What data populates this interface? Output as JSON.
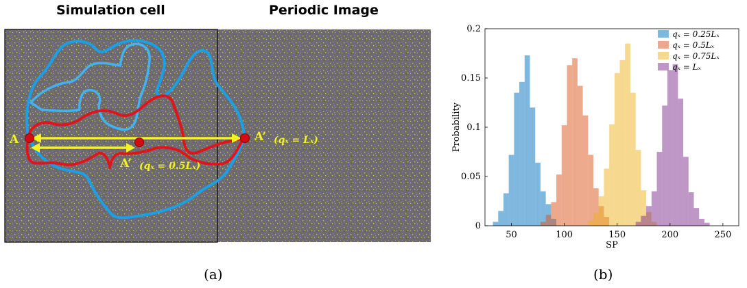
{
  "panel_a": {
    "title_left": "Simulation cell",
    "title_right": "Periodic Image",
    "point_a_label": "A",
    "point_a_prime_far_label": "A’",
    "point_a_prime_far_eq": "(qₓ = Lₓ)",
    "point_a_prime_near_label": "A’",
    "point_a_prime_near_eq": "(qₓ = 0.5Lₓ)",
    "sub_label": "(a)",
    "colors": {
      "background": "#6e6a72",
      "speckle": "#d2cf3a",
      "path_blue": "#1ba0e6",
      "path_light_blue": "#3fb4f0",
      "path_red": "#e0141c",
      "arrow": "#f3f224",
      "point": "#d40d12"
    }
  },
  "panel_b": {
    "sub_label": "(b)"
  },
  "chart_data": {
    "type": "bar",
    "subtype": "histogram",
    "xlabel": "SP",
    "ylabel": "Probability",
    "xlim": [
      25,
      265
    ],
    "ylim": [
      0,
      0.2
    ],
    "xticks": [
      50,
      100,
      150,
      200,
      250
    ],
    "yticks": [
      0,
      0.05,
      0.1,
      0.15,
      0.2
    ],
    "ytick_labels": [
      "0",
      "0.05",
      "0.1",
      "0.15",
      "0.2"
    ],
    "bin_width": 5,
    "grid": false,
    "legend_position": "top-right",
    "series": [
      {
        "name": "q_x = 0.25L_x",
        "legend_label": "qₓ = 0.25Lₓ",
        "color": "#0072bd",
        "bins": [
          {
            "x": 35,
            "y": 0.004
          },
          {
            "x": 40,
            "y": 0.015
          },
          {
            "x": 45,
            "y": 0.033
          },
          {
            "x": 50,
            "y": 0.072
          },
          {
            "x": 55,
            "y": 0.135
          },
          {
            "x": 60,
            "y": 0.146
          },
          {
            "x": 65,
            "y": 0.173
          },
          {
            "x": 70,
            "y": 0.12
          },
          {
            "x": 75,
            "y": 0.064
          },
          {
            "x": 80,
            "y": 0.035
          },
          {
            "x": 85,
            "y": 0.022
          },
          {
            "x": 90,
            "y": 0.007
          }
        ]
      },
      {
        "name": "q_x = 0.5L_x",
        "legend_label": "qₓ = 0.5Lₓ",
        "color": "#d95319",
        "bins": [
          {
            "x": 80,
            "y": 0.004
          },
          {
            "x": 85,
            "y": 0.011
          },
          {
            "x": 90,
            "y": 0.024
          },
          {
            "x": 95,
            "y": 0.052
          },
          {
            "x": 100,
            "y": 0.102
          },
          {
            "x": 105,
            "y": 0.163
          },
          {
            "x": 110,
            "y": 0.17
          },
          {
            "x": 115,
            "y": 0.142
          },
          {
            "x": 120,
            "y": 0.112
          },
          {
            "x": 125,
            "y": 0.072
          },
          {
            "x": 130,
            "y": 0.038
          },
          {
            "x": 135,
            "y": 0.02
          },
          {
            "x": 140,
            "y": 0.009
          }
        ]
      },
      {
        "name": "q_x = 0.75L_x",
        "legend_label": "qₓ = 0.75Lₓ",
        "color": "#edb120",
        "bins": [
          {
            "x": 125,
            "y": 0.005
          },
          {
            "x": 130,
            "y": 0.013
          },
          {
            "x": 135,
            "y": 0.03
          },
          {
            "x": 140,
            "y": 0.058
          },
          {
            "x": 145,
            "y": 0.103
          },
          {
            "x": 150,
            "y": 0.155
          },
          {
            "x": 155,
            "y": 0.168
          },
          {
            "x": 160,
            "y": 0.185
          },
          {
            "x": 165,
            "y": 0.135
          },
          {
            "x": 170,
            "y": 0.077
          },
          {
            "x": 175,
            "y": 0.036
          },
          {
            "x": 180,
            "y": 0.014
          },
          {
            "x": 185,
            "y": 0.004
          }
        ]
      },
      {
        "name": "q_x = L_x",
        "legend_label": "qₓ = Lₓ",
        "color": "#7e2f8e",
        "bins": [
          {
            "x": 170,
            "y": 0.004
          },
          {
            "x": 175,
            "y": 0.01
          },
          {
            "x": 180,
            "y": 0.02
          },
          {
            "x": 185,
            "y": 0.035
          },
          {
            "x": 190,
            "y": 0.075
          },
          {
            "x": 195,
            "y": 0.122
          },
          {
            "x": 200,
            "y": 0.158
          },
          {
            "x": 205,
            "y": 0.164
          },
          {
            "x": 210,
            "y": 0.129
          },
          {
            "x": 215,
            "y": 0.07
          },
          {
            "x": 220,
            "y": 0.034
          },
          {
            "x": 225,
            "y": 0.018
          },
          {
            "x": 230,
            "y": 0.007
          },
          {
            "x": 235,
            "y": 0.003
          }
        ]
      }
    ]
  }
}
